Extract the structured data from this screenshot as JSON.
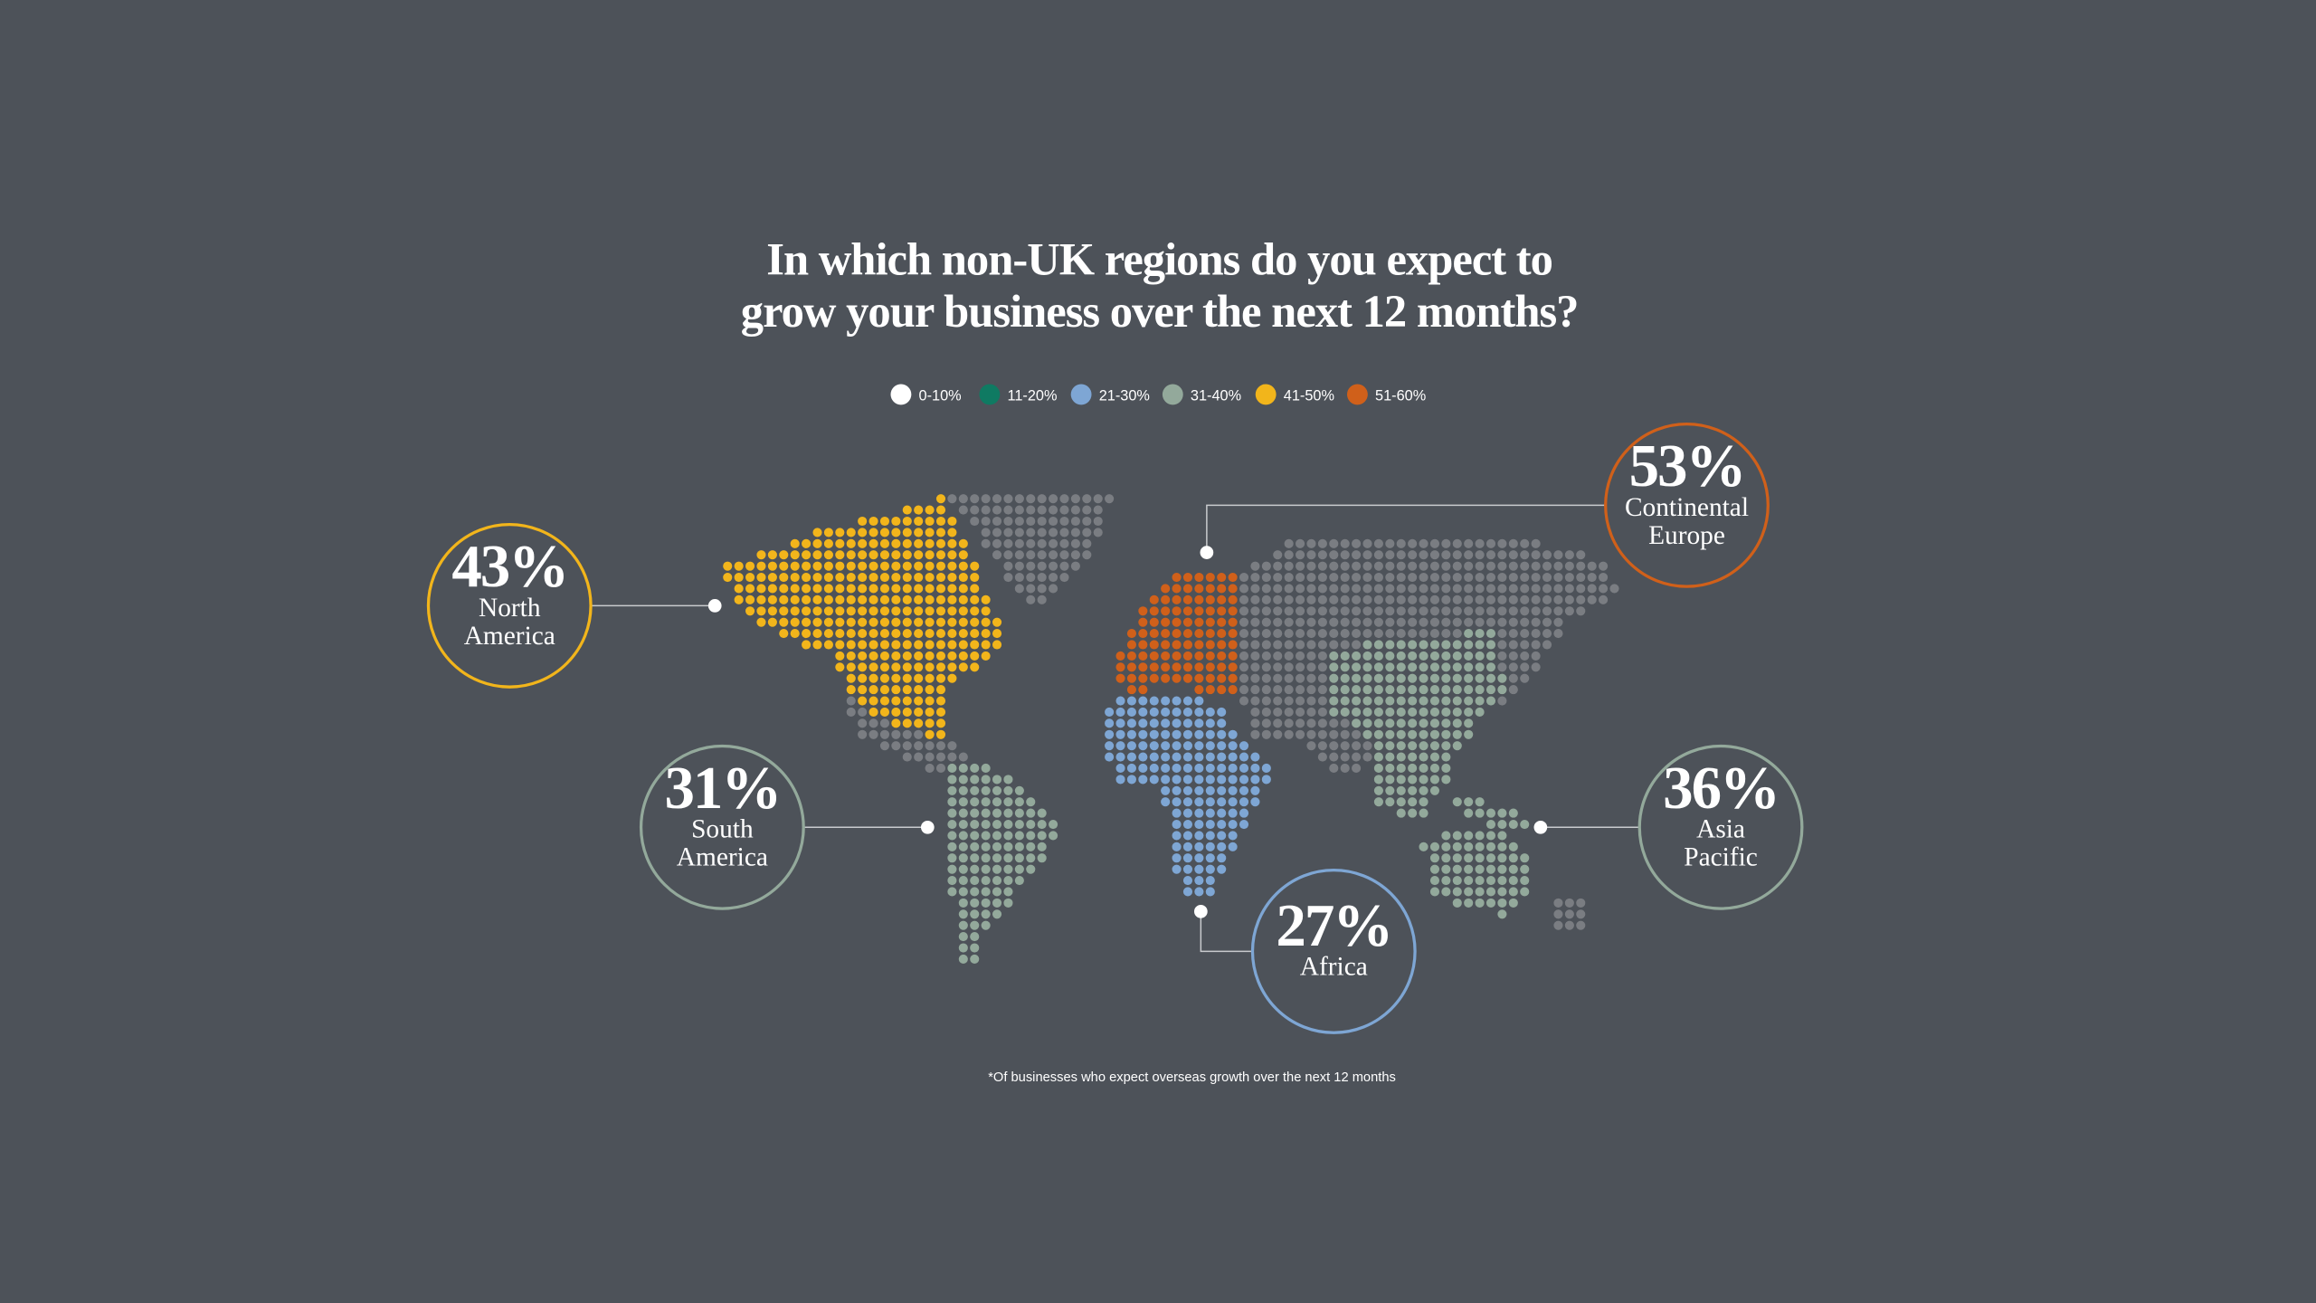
{
  "title": [
    "In which non-UK regions do you expect to",
    "grow your business over the next 12 months?"
  ],
  "legend": [
    {
      "label": "0-10%",
      "color": "#ffffff"
    },
    {
      "label": "11-20%",
      "color": "#0f7a62"
    },
    {
      "label": "21-30%",
      "color": "#7ea6d4"
    },
    {
      "label": "31-40%",
      "color": "#93a99b"
    },
    {
      "label": "41-50%",
      "color": "#f2b51b"
    },
    {
      "label": "51-60%",
      "color": "#d0601a"
    }
  ],
  "regions": [
    {
      "value": "43%",
      "name": [
        "North",
        "America"
      ],
      "color": "#f2b51b"
    },
    {
      "value": "31%",
      "name": [
        "South",
        "America"
      ],
      "color": "#93a99b"
    },
    {
      "value": "53%",
      "name": [
        "Continental",
        "Europe"
      ],
      "color": "#d0601a"
    },
    {
      "value": "27%",
      "name": [
        "Africa"
      ],
      "color": "#7ea6d4"
    },
    {
      "value": "36%",
      "name": [
        "Asia",
        "Pacific"
      ],
      "color": "#93a99b"
    }
  ],
  "footnote": "*Of businesses who expect overseas growth over the next 12 months"
}
